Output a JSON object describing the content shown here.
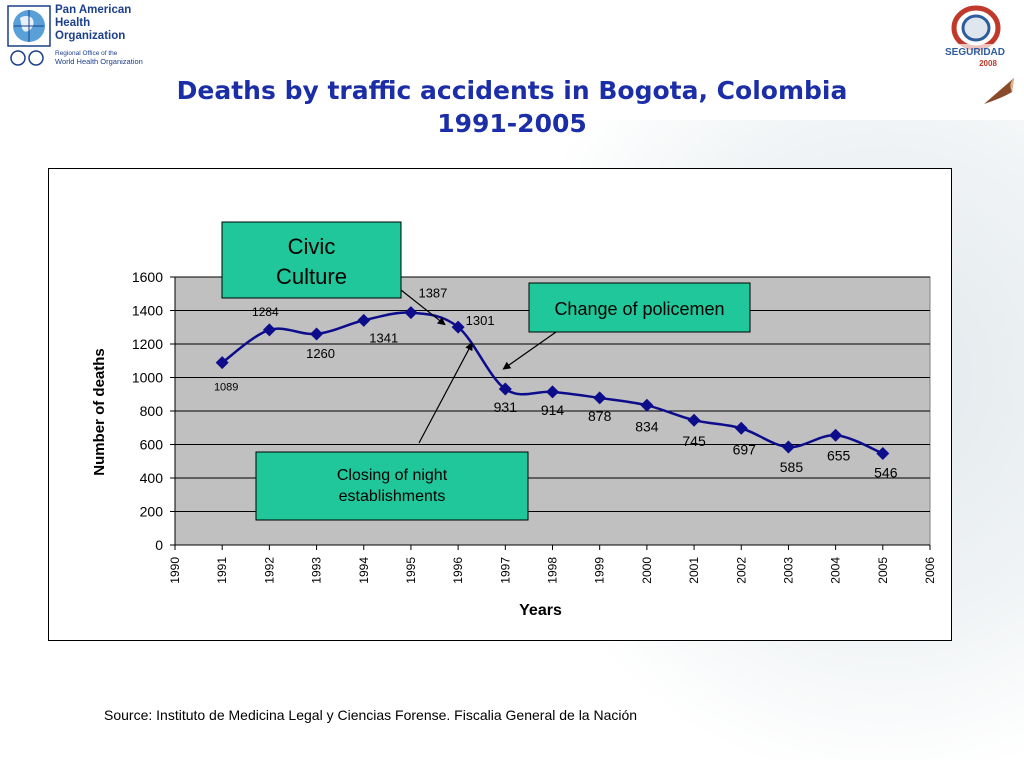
{
  "header": {
    "org_name": "Pan American\nHealth\nOrganization",
    "org_subtitle": "Regional Office of the",
    "org_subtitle2": "World Health Organization",
    "event_logo_text": "SEGURIDAD",
    "event_logo_year": "2008"
  },
  "colors": {
    "title": "#1b2ea8",
    "series": "#0d0d8c",
    "plot_bg": "#c0c0c0",
    "callout_fill": "#1fc79a"
  },
  "chart_data": {
    "type": "line",
    "title": "Deaths by traffic accidents in Bogota, Colombia 1991-2005",
    "title_line1": "Deaths by traffic accidents in Bogota, Colombia",
    "title_line2": "1991-2005",
    "xlabel": "Years",
    "ylabel": "Number of deaths",
    "xlim": [
      1990,
      2006
    ],
    "ylim": [
      0,
      1600
    ],
    "x_ticks": [
      "1990",
      "1991",
      "1992",
      "1993",
      "1994",
      "1995",
      "1996",
      "1997",
      "1998",
      "1999",
      "2000",
      "2001",
      "2002",
      "2003",
      "2004",
      "2005",
      "2006"
    ],
    "y_ticks": [
      "0",
      "200",
      "400",
      "600",
      "800",
      "1000",
      "1200",
      "1400",
      "1600"
    ],
    "grid": true,
    "series": [
      {
        "x": [
          1991,
          1992,
          1993,
          1994,
          1995,
          1996,
          1997,
          1998,
          1999,
          2000,
          2001,
          2002,
          2003,
          2004,
          2005
        ],
        "values": [
          1089,
          1284,
          1260,
          1341,
          1387,
          1301,
          931,
          914,
          878,
          834,
          745,
          697,
          585,
          655,
          546
        ]
      }
    ],
    "annotations": [
      {
        "text_lines": [
          "Civic",
          "Culture"
        ],
        "points_to": 1995
      },
      {
        "text_lines": [
          "Change of policemen"
        ],
        "points_to": 1997
      },
      {
        "text_lines": [
          "Closing of night",
          "establishments"
        ],
        "points_to": 1996
      }
    ]
  },
  "footer": {
    "source": "Source: Instituto de Medicina Legal y Ciencias Forense. Fiscalia General de la Nación"
  }
}
